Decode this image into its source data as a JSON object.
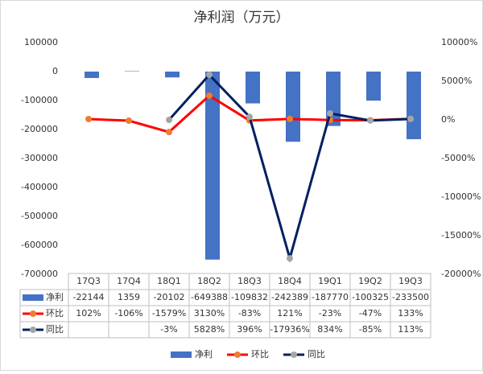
{
  "chart_data": {
    "type": "bar-line",
    "title": "净利润（万元）",
    "categories": [
      "17Q3",
      "17Q4",
      "18Q1",
      "18Q2",
      "18Q3",
      "18Q4",
      "19Q1",
      "19Q2",
      "19Q3"
    ],
    "series": [
      {
        "name": "净利",
        "type": "bar",
        "color": "#4472c4",
        "values": [
          -22144,
          1359,
          -20102,
          -649388,
          -109832,
          -242389,
          -187770,
          -100325,
          -233500
        ]
      },
      {
        "name": "环比",
        "type": "line",
        "axis": "y2",
        "color": "#ff0000",
        "marker_color": "#ed7d31",
        "values": [
          102,
          -106,
          -1579,
          3130,
          -83,
          121,
          -23,
          -47,
          133
        ],
        "value_labels": [
          "102%",
          "-106%",
          "-1579%",
          "3130%",
          "-83%",
          "121%",
          "-23%",
          "-47%",
          "133%"
        ]
      },
      {
        "name": "同比",
        "type": "line",
        "axis": "y2",
        "color": "#002060",
        "marker_color": "#a5a5a5",
        "values": [
          null,
          null,
          -3,
          5828,
          396,
          -17936,
          834,
          -85,
          113
        ],
        "value_labels": [
          null,
          null,
          "-3%",
          "5828%",
          "396%",
          "-17936%",
          "834%",
          "-85%",
          "113%"
        ]
      }
    ],
    "ylim": [
      -700000,
      100000
    ],
    "yticks": [
      -700000,
      -600000,
      -500000,
      -400000,
      -300000,
      -200000,
      -100000,
      0,
      100000
    ],
    "y2lim": [
      -20000,
      10000
    ],
    "y2ticks": [
      {
        "value": -20000,
        "label": "-20000%"
      },
      {
        "value": -15000,
        "label": "-15000%"
      },
      {
        "value": -10000,
        "label": "-10000%"
      },
      {
        "value": -5000,
        "label": "-5000%"
      },
      {
        "value": 0,
        "label": "0%"
      },
      {
        "value": 5000,
        "label": "5000%"
      },
      {
        "value": 10000,
        "label": "10000%"
      }
    ],
    "grid": false,
    "legend": "bottom"
  }
}
